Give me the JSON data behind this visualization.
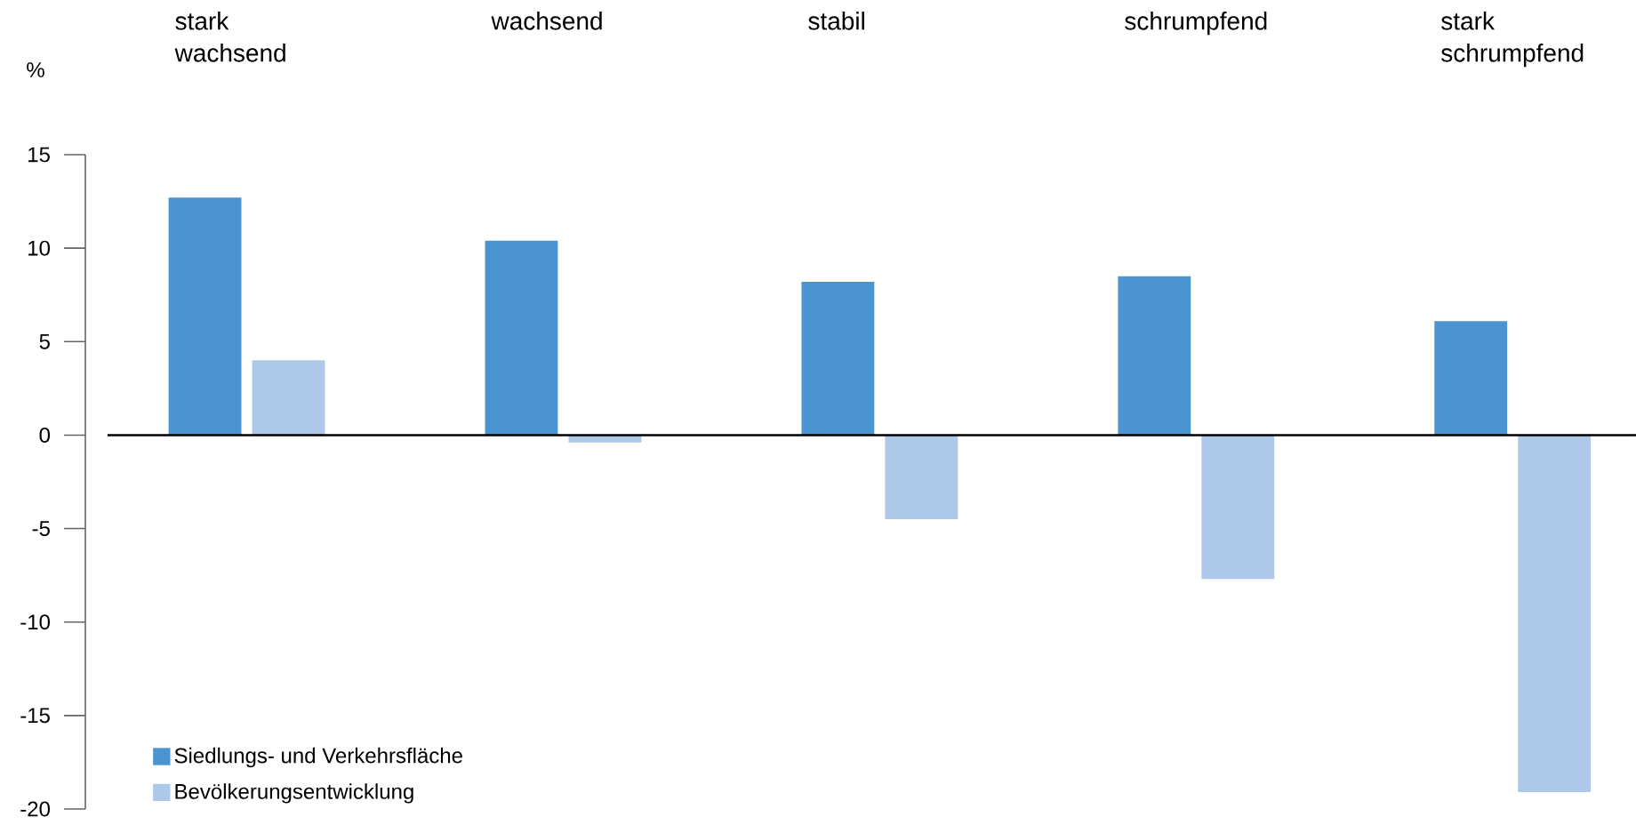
{
  "chart_data": {
    "type": "bar",
    "ylabel": "%",
    "categories": [
      "stark wachsend",
      "wachsend",
      "stabil",
      "schrumpfend",
      "stark schrumpfend"
    ],
    "series": [
      {
        "name": "Siedlungs- und Verkehrsfläche",
        "color": "#4a95d1",
        "values": [
          12.7,
          10.4,
          8.2,
          8.5,
          6.1
        ]
      },
      {
        "name": "Bevölkerungsentwicklung",
        "color": "#aec8ea",
        "values": [
          4.0,
          -0.4,
          -4.5,
          -7.7,
          -19.1
        ]
      }
    ],
    "ylim": [
      -20,
      15
    ],
    "yticks": [
      -20,
      -15,
      -10,
      -5,
      0,
      5,
      10,
      15
    ],
    "legend": "bottom left"
  }
}
